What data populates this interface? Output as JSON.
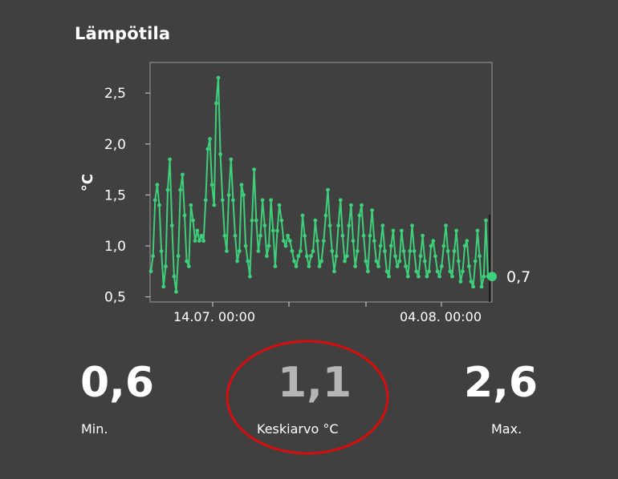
{
  "title": "Lämpötila",
  "colors": {
    "background": "#404040",
    "line": "#3ecf7a",
    "highlight_ring": "#d80d0d",
    "average_value": "#b5b5b5",
    "text": "#ffffff"
  },
  "chart_data": {
    "type": "line",
    "ylabel": "°C",
    "ylim": [
      0.45,
      2.8
    ],
    "yticks": [
      "0,5",
      "1,0",
      "1,5",
      "2,0",
      "2,5"
    ],
    "xtick_labels": [
      "14.07. 00:00",
      "04.08. 00:00"
    ],
    "grid": false,
    "current_value": "0,7",
    "series": [
      {
        "values": [
          0.75,
          0.9,
          1.45,
          1.6,
          1.4,
          0.95,
          0.6,
          0.8,
          1.55,
          1.85,
          1.2,
          0.7,
          0.55,
          0.9,
          1.55,
          1.7,
          1.3,
          0.85,
          0.8,
          1.4,
          1.25,
          1.05,
          1.15,
          1.05,
          1.1,
          1.05,
          1.45,
          1.95,
          2.05,
          1.6,
          1.4,
          2.4,
          2.65,
          1.9,
          1.45,
          1.1,
          0.95,
          1.5,
          1.85,
          1.45,
          1.1,
          0.85,
          0.95,
          1.6,
          1.5,
          1.0,
          0.85,
          0.7,
          1.25,
          1.75,
          1.25,
          0.95,
          1.1,
          1.45,
          1.2,
          0.9,
          1.0,
          1.45,
          1.15,
          0.8,
          1.15,
          1.4,
          1.25,
          1.05,
          1.0,
          1.1,
          1.05,
          0.95,
          0.85,
          0.8,
          0.9,
          0.95,
          1.3,
          1.1,
          0.9,
          0.8,
          0.9,
          0.95,
          1.25,
          1.05,
          0.8,
          0.85,
          1.05,
          1.3,
          1.55,
          1.2,
          0.95,
          0.75,
          0.9,
          1.2,
          1.45,
          1.1,
          0.85,
          0.9,
          1.2,
          1.4,
          1.05,
          0.8,
          0.95,
          1.3,
          1.4,
          1.1,
          0.85,
          0.75,
          1.1,
          1.35,
          1.05,
          0.85,
          0.8,
          1.0,
          1.2,
          0.95,
          0.75,
          0.7,
          1.0,
          1.15,
          0.9,
          0.8,
          0.85,
          1.15,
          0.95,
          0.8,
          0.7,
          0.95,
          1.2,
          0.95,
          0.75,
          0.7,
          0.9,
          1.1,
          0.85,
          0.7,
          0.75,
          1.0,
          1.05,
          0.9,
          0.75,
          0.7,
          0.8,
          1.0,
          1.2,
          0.95,
          0.75,
          0.7,
          0.95,
          1.15,
          0.85,
          0.65,
          0.75,
          1.0,
          1.05,
          0.8,
          0.65,
          0.6,
          0.85,
          1.15,
          0.9,
          0.6,
          0.7,
          1.25,
          0.7
        ]
      }
    ]
  },
  "stats": {
    "min": {
      "value": "0,6",
      "label": "Min."
    },
    "avg": {
      "value": "1,1",
      "label": "Keskiarvo °C"
    },
    "max": {
      "value": "2,6",
      "label": "Max."
    }
  }
}
